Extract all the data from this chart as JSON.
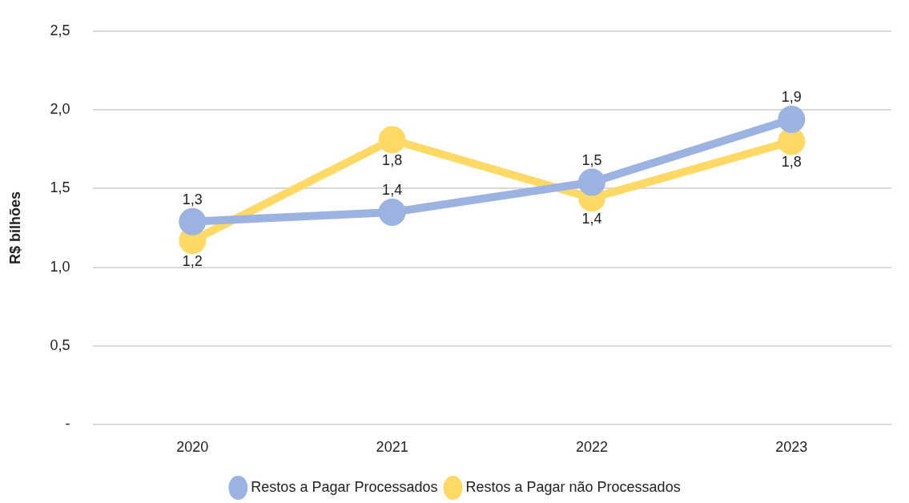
{
  "chart_data": {
    "type": "line",
    "ylabel": "R$ bilhões",
    "categories": [
      "2020",
      "2021",
      "2022",
      "2023"
    ],
    "series": [
      {
        "name": "Restos a Pagar Processados",
        "color": "#9cb3e1",
        "values": [
          1.29,
          1.35,
          1.54,
          1.94
        ],
        "value_labels": [
          "1,3",
          "1,4",
          "1,5",
          "1,9"
        ]
      },
      {
        "name": "Restos a Pagar não Processados",
        "color": "#ffd966",
        "values": [
          1.17,
          1.81,
          1.44,
          1.8
        ],
        "value_labels": [
          "1,2",
          "1,8",
          "1,4",
          "1,8"
        ]
      }
    ],
    "ylim": [
      0,
      2.5
    ],
    "yticks": [
      {
        "value": 0,
        "label": "-"
      },
      {
        "value": 0.5,
        "label": "0,5"
      },
      {
        "value": 1,
        "label": "1,0"
      },
      {
        "value": 1.5,
        "label": "1,5"
      },
      {
        "value": 2,
        "label": "2,0"
      },
      {
        "value": 2.5,
        "label": "2,5"
      }
    ],
    "grid": "y",
    "legend": "bottom",
    "marker": "circle",
    "line_style": "solid"
  }
}
